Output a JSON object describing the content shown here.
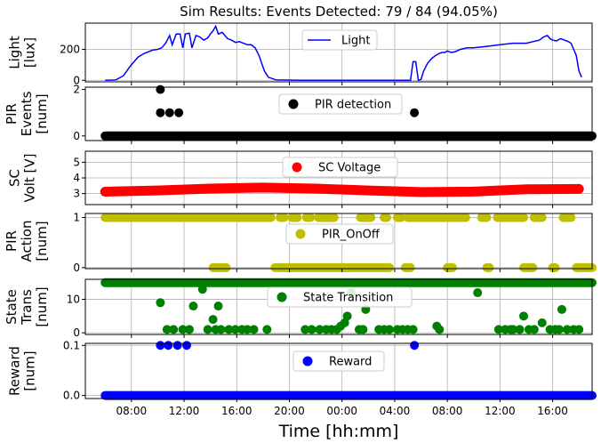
{
  "title": "Sim Results: Events Detected: 79 / 84 (94.05%)",
  "xlabel": "Time [hh:mm]",
  "x_ticks": [
    "08:00",
    "12:00",
    "16:00",
    "20:00",
    "00:00",
    "04:00",
    "08:00",
    "12:00",
    "16:00"
  ],
  "chart_data": [
    {
      "type": "line",
      "ylabel": [
        "Light",
        "[lux]"
      ],
      "ylim": [
        -10,
        370
      ],
      "yticks": [
        0,
        200
      ],
      "legend": "Light",
      "legend_marker": "line",
      "color": "#0000ff",
      "grid": true,
      "x_range_hours": [
        4.5,
        43
      ],
      "series": [
        {
          "name": "Light",
          "x": [
            6.0,
            6.8,
            7.4,
            7.9,
            8.5,
            9.0,
            9.6,
            10.0,
            10.3,
            10.6,
            10.9,
            11.1,
            11.4,
            11.7,
            11.9,
            12.1,
            12.4,
            12.6,
            12.9,
            13.2,
            13.5,
            13.8,
            14.0,
            14.2,
            14.4,
            14.6,
            14.9,
            15.3,
            15.6,
            15.9,
            16.2,
            16.5,
            16.8,
            17.1,
            17.4,
            17.7,
            17.9,
            18.1,
            18.4,
            19.0,
            21.0,
            24.0,
            27.0,
            28.5,
            29.0,
            29.2,
            29.4,
            29.6,
            29.8,
            30.0,
            30.2,
            30.5,
            30.8,
            31.1,
            31.4,
            31.6,
            31.8,
            32.0,
            32.3,
            32.6,
            33.0,
            33.5,
            34.0,
            35.0,
            36.0,
            37.0,
            38.0,
            38.5,
            39.0,
            39.3,
            39.6,
            39.8,
            40.0,
            40.3,
            40.6,
            40.9,
            41.2,
            41.4,
            41.6,
            41.8,
            42.0,
            42.2
          ],
          "y": [
            0,
            2,
            30,
            90,
            150,
            175,
            195,
            200,
            210,
            240,
            290,
            230,
            300,
            300,
            210,
            300,
            305,
            210,
            290,
            280,
            260,
            275,
            300,
            320,
            350,
            300,
            310,
            270,
            260,
            245,
            250,
            240,
            230,
            230,
            210,
            160,
            110,
            60,
            20,
            2,
            0,
            0,
            0,
            0,
            0,
            0,
            120,
            120,
            0,
            5,
            60,
            110,
            140,
            160,
            175,
            180,
            180,
            190,
            180,
            185,
            200,
            210,
            210,
            220,
            230,
            240,
            240,
            250,
            260,
            280,
            290,
            270,
            260,
            255,
            270,
            260,
            250,
            240,
            200,
            160,
            60,
            20
          ]
        }
      ]
    },
    {
      "type": "scatter",
      "ylabel": [
        "PIR",
        "Events",
        "[num]"
      ],
      "ylim": [
        -0.2,
        2.1
      ],
      "yticks": [
        0,
        2
      ],
      "legend": "PIR detection",
      "color": "#000000",
      "grid": false,
      "baseline_value": 0,
      "points": [
        [
          10.2,
          2
        ],
        [
          10.2,
          1
        ],
        [
          10.9,
          1
        ],
        [
          11.6,
          1
        ],
        [
          29.5,
          1
        ]
      ]
    },
    {
      "type": "scatter",
      "ylabel": [
        "SC",
        "Volt [V]"
      ],
      "ylim": [
        2.3,
        5.7
      ],
      "yticks": [
        3,
        4,
        5
      ],
      "legend": "SC Voltage",
      "color": "#ff0000",
      "grid": true,
      "trend_x": [
        6,
        10,
        14,
        18,
        22,
        26,
        30,
        34,
        38,
        42
      ],
      "trend_y": [
        3.12,
        3.2,
        3.32,
        3.38,
        3.32,
        3.2,
        3.1,
        3.13,
        3.28,
        3.3
      ]
    },
    {
      "type": "scatter",
      "ylabel": [
        "PIR",
        "Action",
        "[num]"
      ],
      "ylim": [
        -0.02,
        1.08
      ],
      "yticks": [
        0,
        1
      ],
      "legend": "PIR_OnOff",
      "color": "#bfbf00",
      "grid": true,
      "ones": [
        [
          6.0,
          18.6
        ],
        [
          19.3,
          19.6
        ],
        [
          20.2,
          20.6
        ],
        [
          21.3,
          21.6
        ],
        [
          22.2,
          23.4
        ],
        [
          25.4,
          26.2
        ],
        [
          27.2,
          27.4
        ],
        [
          28.2,
          28.5
        ],
        [
          29.0,
          33.4
        ],
        [
          34.6,
          35.0
        ],
        [
          35.8,
          37.8
        ],
        [
          38.6,
          39.2
        ],
        [
          40.8,
          41.4
        ]
      ],
      "zeros": [
        [
          14.2,
          15.2
        ],
        [
          18.9,
          27.6
        ],
        [
          28.8,
          29.2
        ],
        [
          32.0,
          32.4
        ],
        [
          35.0,
          35.2
        ],
        [
          37.8,
          38.5
        ],
        [
          40.0,
          40.2
        ],
        [
          41.8,
          43.0
        ]
      ]
    },
    {
      "type": "scatter",
      "ylabel": [
        "State",
        "Trans",
        "[num]"
      ],
      "ylim": [
        -0.5,
        16
      ],
      "yticks": [
        0,
        10
      ],
      "legend": "State Transition",
      "color": "#008000",
      "grid": true,
      "top_value": 15,
      "points": [
        [
          10.2,
          9
        ],
        [
          10.7,
          1
        ],
        [
          11.2,
          1
        ],
        [
          11.9,
          1
        ],
        [
          12.4,
          1
        ],
        [
          12.7,
          8
        ],
        [
          13.4,
          13
        ],
        [
          13.8,
          1
        ],
        [
          14.2,
          4
        ],
        [
          14.6,
          8
        ],
        [
          14.4,
          1
        ],
        [
          14.8,
          1
        ],
        [
          15.4,
          1
        ],
        [
          15.9,
          1
        ],
        [
          16.4,
          1
        ],
        [
          16.8,
          1
        ],
        [
          17.3,
          1
        ],
        [
          18.3,
          1
        ],
        [
          21.2,
          1
        ],
        [
          21.7,
          1
        ],
        [
          22.3,
          1
        ],
        [
          22.8,
          1
        ],
        [
          23.2,
          1
        ],
        [
          23.6,
          1
        ],
        [
          23.9,
          2
        ],
        [
          24.2,
          3
        ],
        [
          24.4,
          5
        ],
        [
          24.7,
          12
        ],
        [
          25.3,
          1
        ],
        [
          25.6,
          1
        ],
        [
          25.8,
          7
        ],
        [
          26.8,
          1
        ],
        [
          27.2,
          1
        ],
        [
          27.6,
          1
        ],
        [
          28.2,
          1
        ],
        [
          28.6,
          1
        ],
        [
          29.0,
          1
        ],
        [
          29.4,
          1
        ],
        [
          31.2,
          2
        ],
        [
          31.4,
          1
        ],
        [
          34.3,
          12
        ],
        [
          35.9,
          1
        ],
        [
          36.4,
          1
        ],
        [
          36.8,
          1
        ],
        [
          37.0,
          1
        ],
        [
          37.5,
          1
        ],
        [
          37.8,
          5
        ],
        [
          38.2,
          1
        ],
        [
          38.6,
          1
        ],
        [
          39.2,
          3
        ],
        [
          39.8,
          1
        ],
        [
          40.2,
          1
        ],
        [
          40.5,
          1
        ],
        [
          40.7,
          7
        ],
        [
          41.1,
          1
        ],
        [
          41.6,
          1
        ],
        [
          42.0,
          1
        ]
      ]
    },
    {
      "type": "scatter",
      "ylabel": [
        "Reward",
        "[num]"
      ],
      "ylim": [
        -0.006,
        0.104
      ],
      "yticks": [
        0.0,
        0.1
      ],
      "ytick_labels": [
        "0.0",
        "0.1"
      ],
      "legend": "Reward",
      "color": "#0000ff",
      "grid": true,
      "baseline_value": 0,
      "points": [
        [
          10.2,
          0.1
        ],
        [
          10.8,
          0.1
        ],
        [
          11.5,
          0.1
        ],
        [
          12.2,
          0.1
        ],
        [
          29.5,
          0.1
        ]
      ]
    }
  ]
}
